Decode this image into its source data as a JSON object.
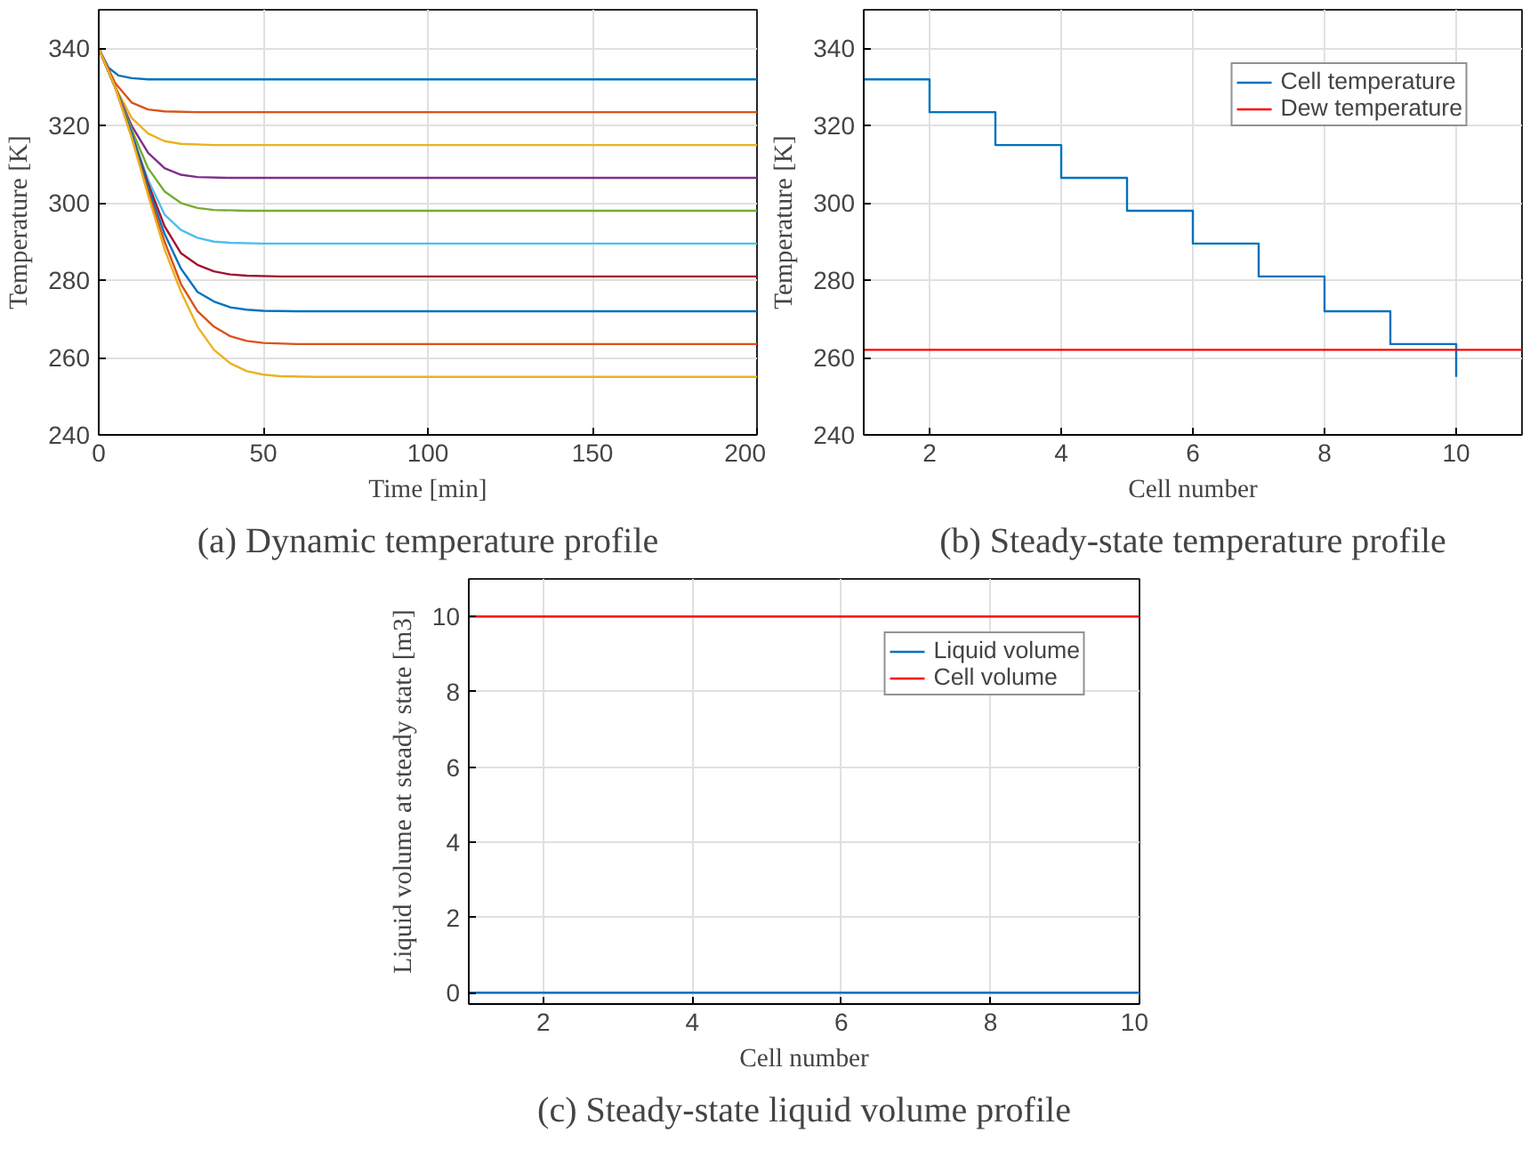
{
  "chart_data": [
    {
      "type": "line",
      "title": "(a) Dynamic temperature profile",
      "xlabel": "Time [min]",
      "ylabel": "Temperature [K]",
      "xlim": [
        0,
        200
      ],
      "xticks": [
        0,
        50,
        100,
        150,
        200
      ],
      "ylim": [
        240,
        350
      ],
      "yticks": [
        240,
        260,
        280,
        300,
        320,
        340
      ],
      "grid": true,
      "series": [
        {
          "color": "#0072bd",
          "x": [
            0,
            3,
            6,
            10,
            15,
            200
          ],
          "values": [
            340,
            335,
            333,
            332.3,
            332,
            332
          ]
        },
        {
          "color": "#d95319",
          "x": [
            0,
            5,
            10,
            15,
            20,
            30,
            200
          ],
          "values": [
            340,
            331,
            326,
            324.2,
            323.7,
            323.5,
            323.5
          ]
        },
        {
          "color": "#edb120",
          "x": [
            0,
            5,
            10,
            15,
            20,
            25,
            35,
            200
          ],
          "values": [
            340,
            330,
            322,
            318,
            316,
            315.3,
            315,
            315
          ]
        },
        {
          "color": "#7e2f8e",
          "x": [
            0,
            5,
            10,
            15,
            20,
            25,
            30,
            40,
            200
          ],
          "values": [
            340,
            330,
            320,
            313,
            309,
            307.3,
            306.7,
            306.5,
            306.5
          ]
        },
        {
          "color": "#77ac30",
          "x": [
            0,
            5,
            10,
            15,
            20,
            25,
            30,
            35,
            45,
            200
          ],
          "values": [
            340,
            330,
            319,
            309,
            303,
            300,
            298.7,
            298.2,
            298,
            298
          ]
        },
        {
          "color": "#4dbeee",
          "x": [
            0,
            5,
            10,
            15,
            20,
            25,
            30,
            35,
            40,
            50,
            200
          ],
          "values": [
            340,
            330,
            318,
            306,
            297,
            293,
            291,
            290,
            289.7,
            289.5,
            289.5
          ]
        },
        {
          "color": "#a2142f",
          "x": [
            0,
            5,
            10,
            15,
            20,
            25,
            30,
            35,
            40,
            45,
            55,
            200
          ],
          "values": [
            340,
            330,
            318,
            305,
            294,
            287,
            284,
            282.3,
            281.5,
            281.2,
            281,
            281
          ]
        },
        {
          "color": "#0072bd",
          "x": [
            0,
            5,
            10,
            15,
            20,
            25,
            30,
            35,
            40,
            45,
            50,
            60,
            200
          ],
          "values": [
            340,
            330,
            318,
            304,
            292,
            283,
            277,
            274.5,
            273,
            272.4,
            272.1,
            272,
            272
          ]
        },
        {
          "color": "#d95319",
          "x": [
            0,
            5,
            10,
            15,
            20,
            25,
            30,
            35,
            40,
            45,
            50,
            60,
            200
          ],
          "values": [
            340,
            330,
            317,
            303,
            290,
            279,
            272,
            268,
            265.5,
            264.3,
            263.8,
            263.5,
            263.5
          ]
        },
        {
          "color": "#edb120",
          "x": [
            0,
            5,
            10,
            15,
            20,
            25,
            30,
            35,
            40,
            45,
            50,
            55,
            65,
            200
          ],
          "values": [
            340,
            330,
            317,
            302,
            288,
            277,
            268,
            262,
            258.5,
            256.5,
            255.6,
            255.2,
            255,
            255
          ]
        }
      ]
    },
    {
      "type": "step",
      "title": "(b) Steady-state temperature profile",
      "xlabel": "Cell number",
      "ylabel": "Temperature [K]",
      "xlim": [
        1,
        11
      ],
      "xticks": [
        2,
        4,
        6,
        8,
        10
      ],
      "ylim": [
        240,
        350
      ],
      "yticks": [
        240,
        260,
        280,
        300,
        320,
        340
      ],
      "grid": true,
      "legend": "top right",
      "series": [
        {
          "name": "Cell temperature",
          "color": "#0072bd",
          "x": [
            1,
            2,
            3,
            4,
            5,
            6,
            7,
            8,
            9,
            10
          ],
          "values": [
            332,
            323.5,
            315,
            306.5,
            298,
            289.5,
            281,
            272,
            263.5,
            255
          ]
        },
        {
          "name": "Dew temperature",
          "type": "line",
          "color": "#ff0000",
          "x": [
            1,
            11
          ],
          "values": [
            262,
            262
          ]
        }
      ]
    },
    {
      "type": "line",
      "title": "(c) Steady-state liquid volume profile",
      "xlabel": "Cell number",
      "ylabel": "Liquid volume at steady state [m3]",
      "xlim": [
        1,
        10
      ],
      "xticks": [
        2,
        4,
        6,
        8,
        10
      ],
      "ylim": [
        -0.3,
        11
      ],
      "yticks": [
        0,
        2,
        4,
        6,
        8,
        10
      ],
      "grid": true,
      "legend": "top right",
      "series": [
        {
          "name": "Liquid volume",
          "color": "#0072bd",
          "x": [
            1,
            2,
            3,
            4,
            5,
            6,
            7,
            8,
            9,
            10
          ],
          "values": [
            0,
            0,
            0,
            0,
            0,
            0,
            0,
            0,
            0,
            0
          ]
        },
        {
          "name": "Cell volume",
          "color": "#ff0000",
          "x": [
            1,
            2,
            3,
            4,
            5,
            6,
            7,
            8,
            9,
            10
          ],
          "values": [
            10,
            10,
            10,
            10,
            10,
            10,
            10,
            10,
            10,
            10
          ]
        }
      ]
    }
  ]
}
